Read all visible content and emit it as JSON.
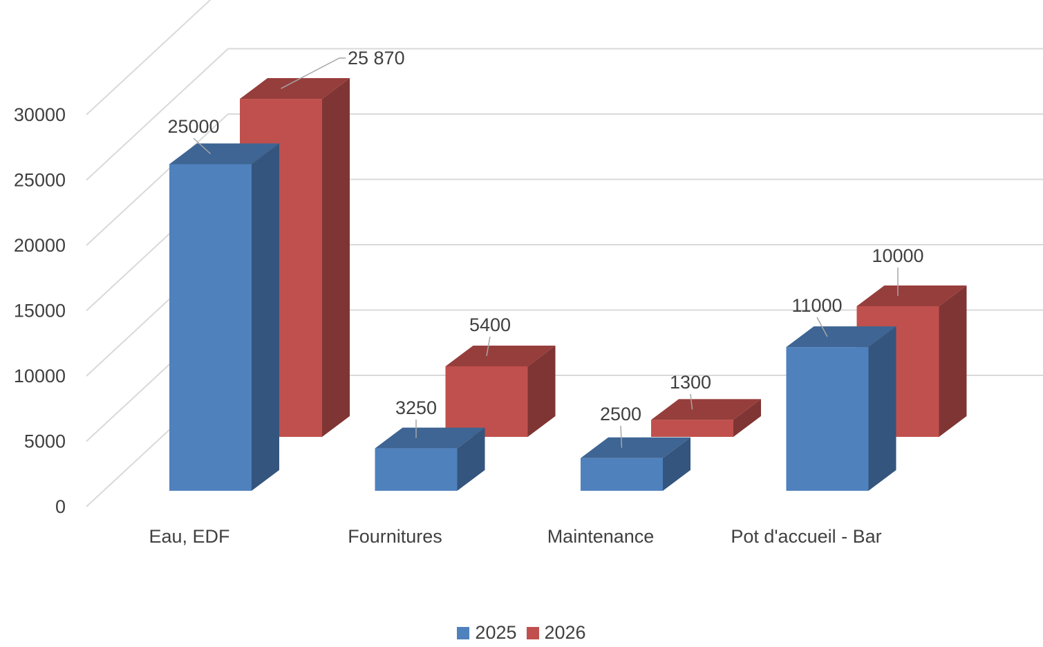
{
  "chart_data": {
    "type": "bar",
    "categories": [
      "Eau, EDF",
      "Fournitures",
      "Maintenance",
      "Pot d'accueil - Bar"
    ],
    "series": [
      {
        "name": "2025",
        "values": [
          25000,
          3250,
          2500,
          11000
        ],
        "labels": [
          "25000",
          "3250",
          "2500",
          "11000"
        ],
        "color": "#4f81bd"
      },
      {
        "name": "2026",
        "values": [
          25870,
          5400,
          1300,
          10000
        ],
        "labels": [
          "25 870",
          "5400",
          "1300",
          "10000"
        ],
        "color": "#c0504d"
      }
    ],
    "ylim": [
      0,
      30000
    ],
    "y_ticks": [
      "0",
      "5000",
      "10000",
      "15000",
      "20000",
      "25000",
      "30000"
    ],
    "grid": true,
    "legend_position": "bottom",
    "style": "3d"
  }
}
